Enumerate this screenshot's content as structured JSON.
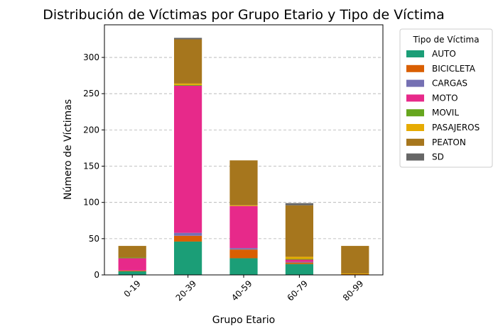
{
  "chart_data": {
    "type": "bar",
    "stacked": true,
    "title": "Distribución de Víctimas por Grupo Etario y Tipo de Víctima",
    "xlabel": "Grupo Etario",
    "ylabel": "Número de Víctimas",
    "categories": [
      "0-19",
      "20-39",
      "40-59",
      "60-79",
      "80-99"
    ],
    "ylim": [
      0,
      345
    ],
    "yticks": [
      0,
      50,
      100,
      150,
      200,
      250,
      300
    ],
    "grid": "y-dashed",
    "legend": {
      "title": "Tipo de Víctima",
      "placement": "outside-right"
    },
    "series": [
      {
        "name": "AUTO",
        "color": "#1b9e77",
        "values": [
          5,
          46,
          23,
          15,
          0
        ]
      },
      {
        "name": "BICICLETA",
        "color": "#d95f02",
        "values": [
          1,
          8,
          12,
          2,
          1
        ]
      },
      {
        "name": "CARGAS",
        "color": "#7570b3",
        "values": [
          0,
          4,
          2,
          1,
          0
        ]
      },
      {
        "name": "MOTO",
        "color": "#e7298a",
        "values": [
          17,
          203,
          58,
          3,
          0
        ]
      },
      {
        "name": "MOVIL",
        "color": "#66a61e",
        "values": [
          1,
          1,
          0,
          1,
          0
        ]
      },
      {
        "name": "PASAJEROS",
        "color": "#e6ab02",
        "values": [
          0,
          2,
          1,
          3,
          1
        ]
      },
      {
        "name": "PEATON",
        "color": "#a6761d",
        "values": [
          16,
          61,
          62,
          71,
          38
        ]
      },
      {
        "name": "SD",
        "color": "#666666",
        "values": [
          0,
          2,
          0,
          3,
          0
        ]
      }
    ]
  }
}
